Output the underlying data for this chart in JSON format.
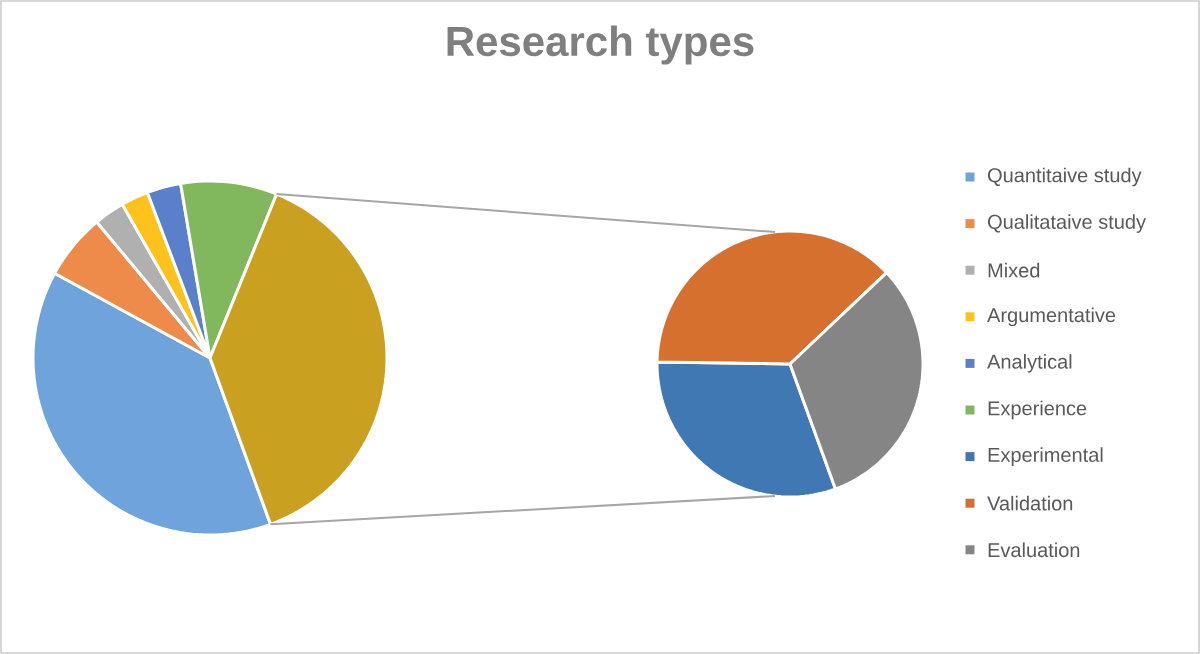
{
  "chart_data": [
    {
      "type": "pie",
      "title": "Research types",
      "legend": "right",
      "categories": [
        "Quantitaive study",
        "Qualitataive study",
        "Mixed",
        "Argumentative",
        "Analytical",
        "Experience",
        null
      ],
      "values": [
        38.5,
        6.0,
        2.8,
        2.5,
        3.1,
        8.8,
        38.3
      ],
      "colors": [
        "#6fa3dc",
        "#ee8a4a",
        "#b0b0b0",
        "#ffc21a",
        "#5a80cc",
        "#82b85d",
        "#c9a020"
      ]
    },
    {
      "type": "pie",
      "legend": "right",
      "categories": [
        "Experimental",
        "Validation",
        "Evaluation"
      ],
      "values": [
        30.8,
        37.7,
        31.5
      ],
      "colors": [
        "#3f78b2",
        "#d6702e",
        "#858585"
      ]
    }
  ]
}
